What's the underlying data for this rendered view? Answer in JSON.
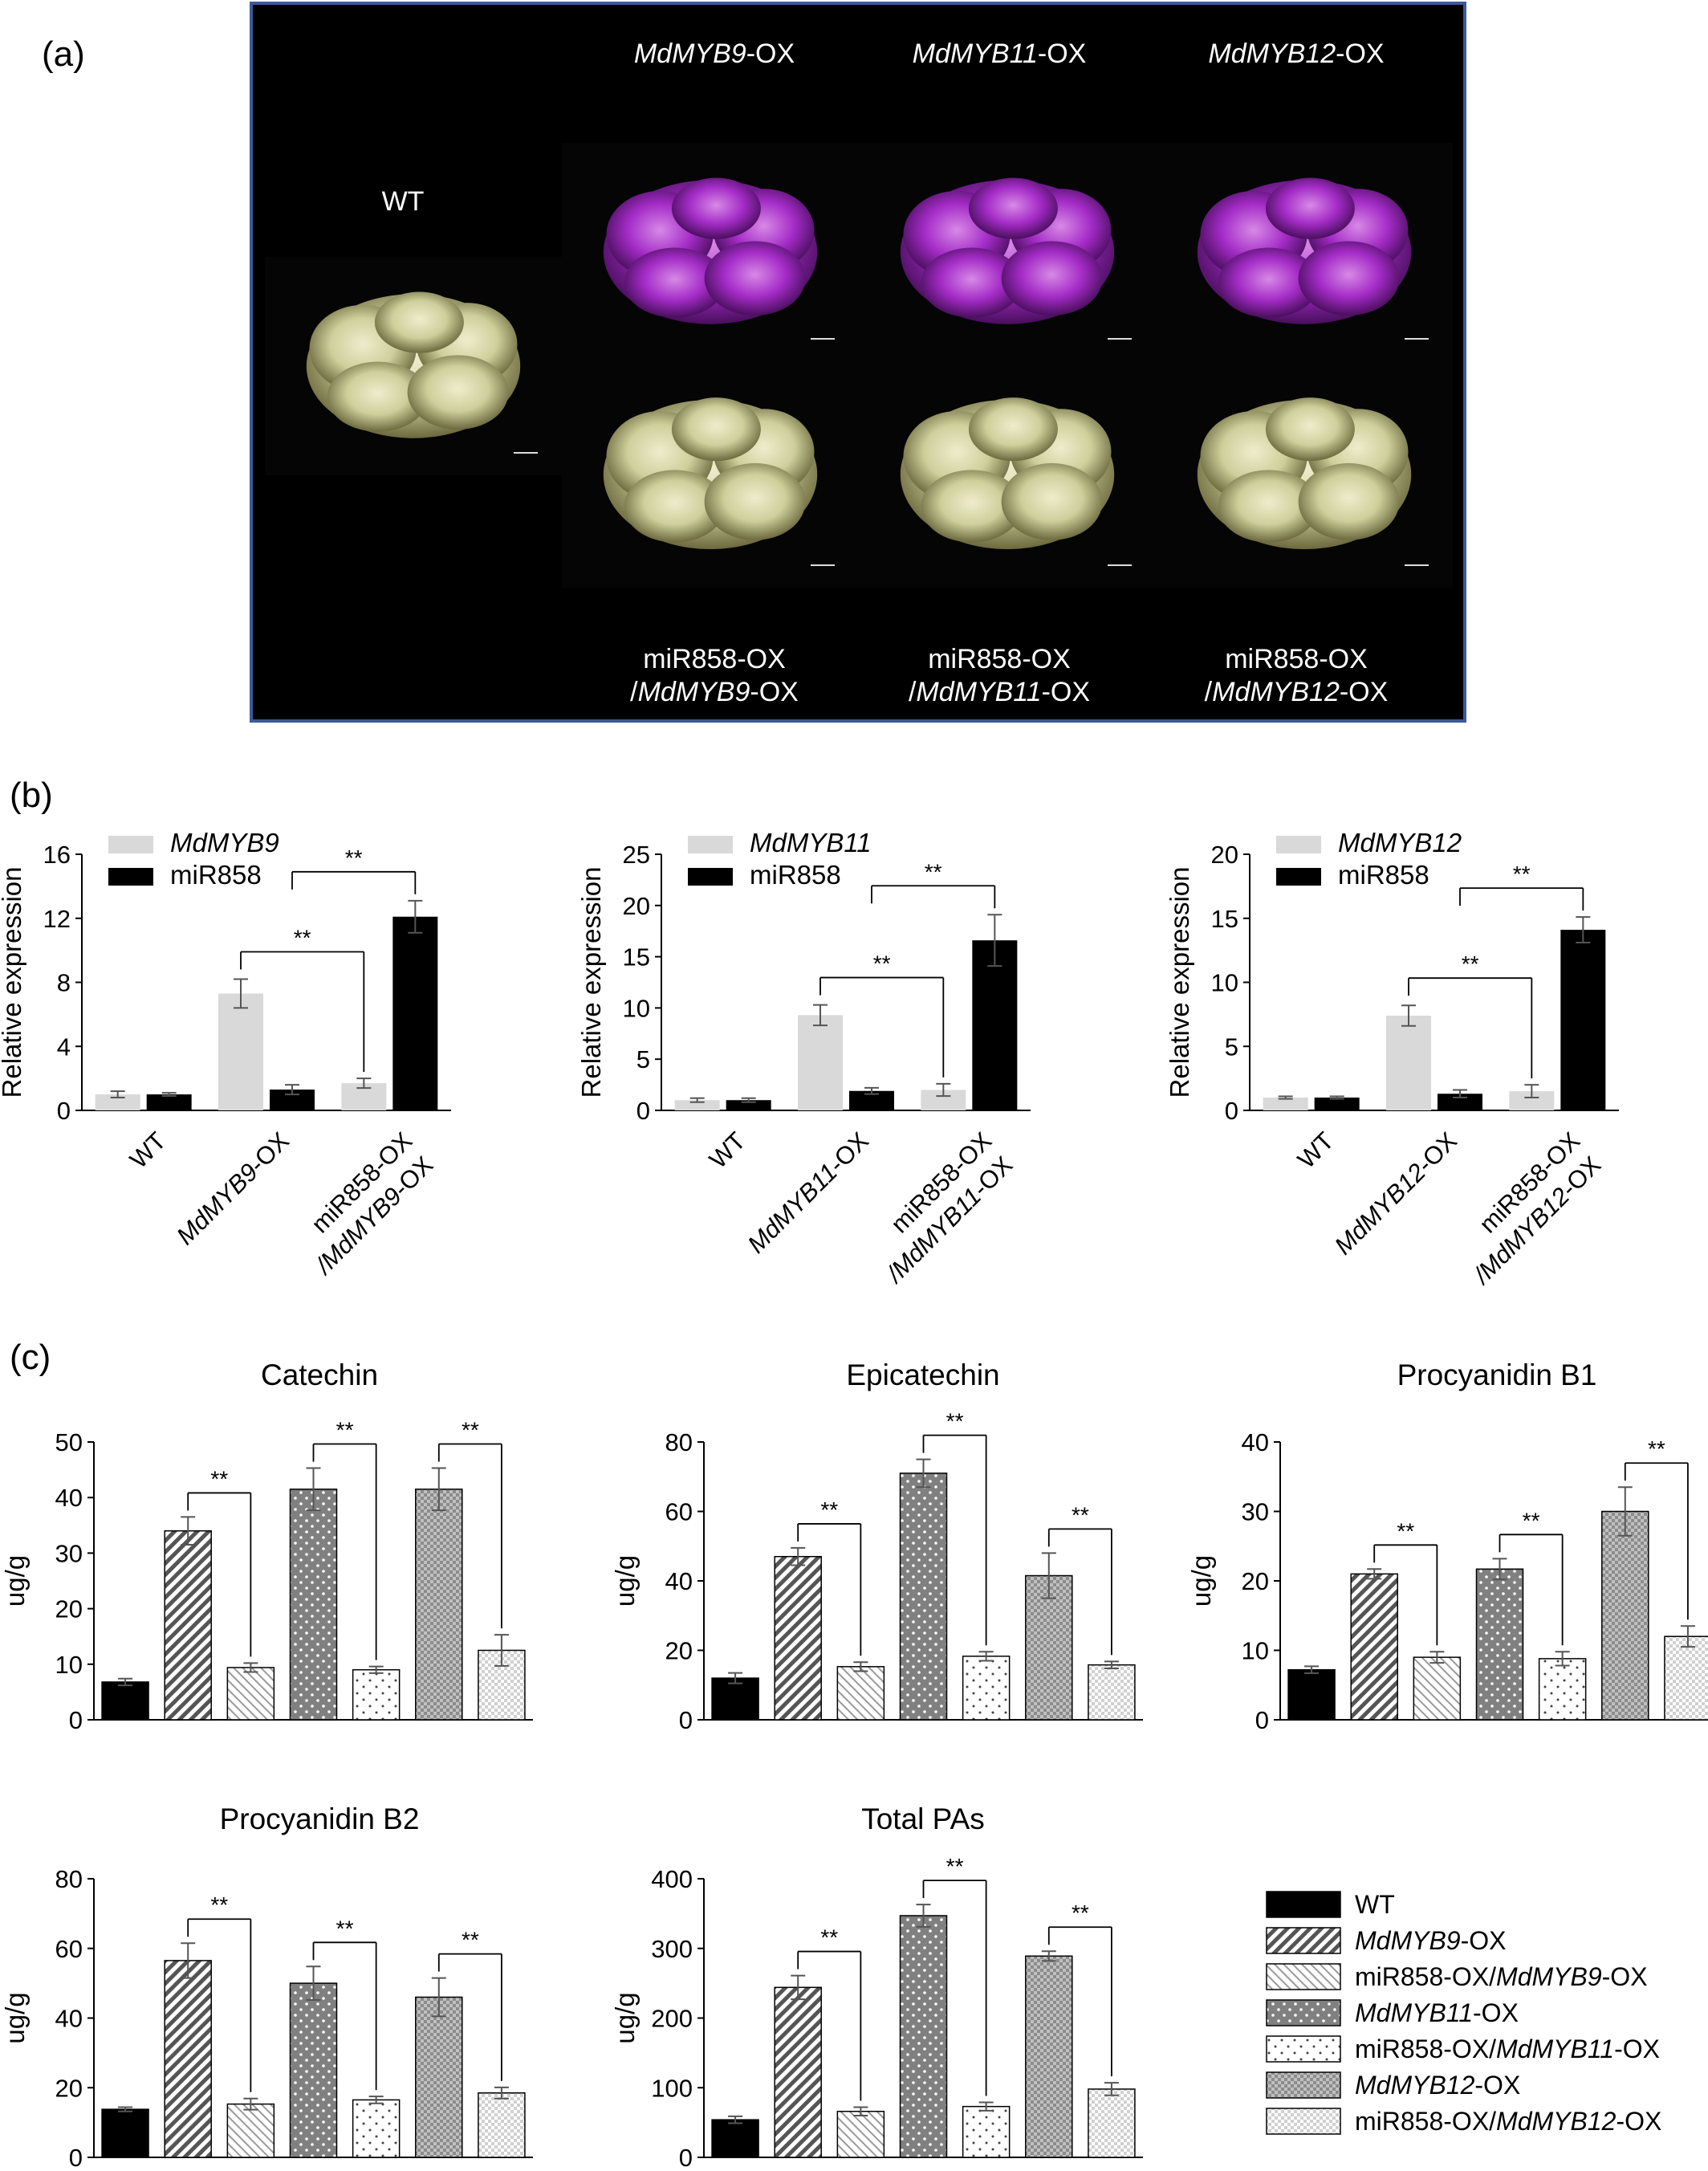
{
  "colors": {
    "photo_border": "#3c5a9a",
    "photo_bg": "#000000",
    "purple": "#a42cc7",
    "cream": "#cfcf9c",
    "bar_light": "#d9d9d9",
    "bar_black": "#000000",
    "bar_dark_pattern": "#7f7f7f",
    "error_bar": "#555555"
  },
  "panel_a": {
    "label": "(a)",
    "wt_label": "WT",
    "top_labels": [
      {
        "gene": "MdMYB9",
        "suffix": "-OX"
      },
      {
        "gene": "MdMYB11",
        "suffix": "-OX"
      },
      {
        "gene": "MdMYB12",
        "suffix": "-OX"
      }
    ],
    "bottom_line1": "miR858-OX",
    "bottom_labels": [
      {
        "prefix": "/",
        "gene": "MdMYB9",
        "suffix": "-OX"
      },
      {
        "prefix": "/",
        "gene": "MdMYB11",
        "suffix": "-OX"
      },
      {
        "prefix": "/",
        "gene": "MdMYB12",
        "suffix": "-OX"
      }
    ],
    "images": [
      {
        "name": "wt-callus",
        "color": "cream"
      },
      {
        "name": "mdmyb9-ox-callus",
        "color": "purple"
      },
      {
        "name": "mdmyb11-ox-callus",
        "color": "purple"
      },
      {
        "name": "mdmyb12-ox-callus",
        "color": "purple"
      },
      {
        "name": "mir858-mdmyb9-callus",
        "color": "cream"
      },
      {
        "name": "mir858-mdmyb11-callus",
        "color": "cream"
      },
      {
        "name": "mir858-mdmyb12-callus",
        "color": "cream"
      }
    ]
  },
  "panel_b": {
    "label": "(b)"
  },
  "panel_c": {
    "label": "(c)",
    "legend": [
      {
        "text": "WT",
        "gene": "",
        "suffix": "",
        "pattern": "black"
      },
      {
        "text": "",
        "gene": "MdMYB9",
        "suffix": "-OX",
        "pattern": "diag"
      },
      {
        "text": "miR858-OX/",
        "gene": "MdMYB9",
        "suffix": "-OX",
        "pattern": "diag-light"
      },
      {
        "text": "",
        "gene": "MdMYB11",
        "suffix": "-OX",
        "pattern": "dots"
      },
      {
        "text": "miR858-OX/",
        "gene": "MdMYB11",
        "suffix": "-OX",
        "pattern": "dots-light"
      },
      {
        "text": "",
        "gene": "MdMYB12",
        "suffix": "-OX",
        "pattern": "checker"
      },
      {
        "text": "miR858-OX/",
        "gene": "MdMYB12",
        "suffix": "-OX",
        "pattern": "checker-light"
      }
    ]
  },
  "chart_data": [
    {
      "type": "bar",
      "panel": "b1",
      "ylabel": "Relative expression",
      "ylim": [
        0,
        16
      ],
      "yticks": [
        "0",
        "4",
        "8",
        "12",
        "16"
      ],
      "categories": [
        {
          "lines": [
            [
              "WT",
              ""
            ]
          ]
        },
        {
          "lines": [
            [
              "MdMYB9",
              "i"
            ],
            [
              "-OX",
              ""
            ]
          ]
        },
        {
          "lines": [
            [
              "miR858-OX",
              ""
            ]
          ],
          "line2": [
            [
              "/MdMYB9",
              "i"
            ],
            [
              "-OX",
              ""
            ]
          ]
        }
      ],
      "series": [
        {
          "name": "MdMYB9",
          "values": [
            1.0,
            7.3,
            1.7
          ],
          "errors": [
            0.2,
            0.9,
            0.3
          ]
        },
        {
          "name": "miR858",
          "values": [
            1.0,
            1.3,
            12.1
          ],
          "errors": [
            0.1,
            0.3,
            1.0
          ]
        }
      ],
      "significance": [
        "**",
        "**"
      ]
    },
    {
      "type": "bar",
      "panel": "b2",
      "ylabel": "Relative expression",
      "ylim": [
        0,
        25
      ],
      "yticks": [
        "0",
        "5",
        "10",
        "15",
        "20",
        "25"
      ],
      "categories": [
        {
          "lines": [
            [
              "WT",
              ""
            ]
          ]
        },
        {
          "lines": [
            [
              "MdMYB11",
              "i"
            ],
            [
              "-OX",
              ""
            ]
          ]
        },
        {
          "lines": [
            [
              "miR858-OX",
              ""
            ]
          ],
          "line2": [
            [
              "/MdMYB11",
              "i"
            ],
            [
              "-OX",
              ""
            ]
          ]
        }
      ],
      "series": [
        {
          "name": "MdMYB11",
          "values": [
            1.0,
            9.3,
            2.0
          ],
          "errors": [
            0.2,
            1.0,
            0.6
          ]
        },
        {
          "name": "miR858",
          "values": [
            1.0,
            1.9,
            16.6
          ],
          "errors": [
            0.2,
            0.3,
            2.5
          ]
        }
      ],
      "significance": [
        "**",
        "**"
      ]
    },
    {
      "type": "bar",
      "panel": "b3",
      "ylabel": "Relative expression",
      "ylim": [
        0,
        20
      ],
      "yticks": [
        "0",
        "5",
        "10",
        "15",
        "20"
      ],
      "categories": [
        {
          "lines": [
            [
              "WT",
              ""
            ]
          ]
        },
        {
          "lines": [
            [
              "MdMYB12",
              "i"
            ],
            [
              "-OX",
              ""
            ]
          ]
        },
        {
          "lines": [
            [
              "miR858-OX",
              ""
            ]
          ],
          "line2": [
            [
              "/MdMYB12",
              "i"
            ],
            [
              "-OX",
              ""
            ]
          ]
        }
      ],
      "series": [
        {
          "name": "MdMYB12",
          "values": [
            1.0,
            7.4,
            1.5
          ],
          "errors": [
            0.1,
            0.8,
            0.5
          ]
        },
        {
          "name": "miR858",
          "values": [
            1.0,
            1.3,
            14.1
          ],
          "errors": [
            0.1,
            0.3,
            1.0
          ]
        }
      ],
      "significance": [
        "**",
        "**"
      ]
    },
    {
      "type": "bar",
      "panel": "c1",
      "title": "Catechin",
      "ylabel": "ug/g",
      "ylim": [
        0,
        50
      ],
      "yticks": [
        "0",
        "10",
        "20",
        "30",
        "40",
        "50"
      ],
      "values": [
        6.8,
        34,
        9.4,
        41.5,
        9.0,
        41.5,
        12.5
      ],
      "errors": [
        0.6,
        2.5,
        0.8,
        3.8,
        0.6,
        3.8,
        2.8
      ],
      "significance": [
        "**",
        "**",
        "**"
      ]
    },
    {
      "type": "bar",
      "panel": "c2",
      "title": "Epicatechin",
      "ylabel": "ug/g",
      "ylim": [
        0,
        80
      ],
      "yticks": [
        "0",
        "20",
        "40",
        "60",
        "80"
      ],
      "values": [
        12,
        47,
        15.3,
        71,
        18.3,
        41.5,
        15.8
      ],
      "errors": [
        1.5,
        2.5,
        1.3,
        4.0,
        1.3,
        6.5,
        1.0
      ],
      "significance": [
        "**",
        "**",
        "**"
      ]
    },
    {
      "type": "bar",
      "panel": "c3",
      "title": "Procyanidin B1",
      "ylabel": "ug/g",
      "ylim": [
        0,
        40
      ],
      "yticks": [
        "0",
        "10",
        "20",
        "30",
        "40"
      ],
      "values": [
        7.2,
        21,
        9.0,
        21.7,
        8.8,
        30,
        12
      ],
      "errors": [
        0.5,
        0.7,
        0.8,
        1.5,
        1.0,
        3.5,
        1.5
      ],
      "significance": [
        "**",
        "**",
        "**"
      ]
    },
    {
      "type": "bar",
      "panel": "c4",
      "title": "Procyanidin B2",
      "ylabel": "ug/g",
      "ylim": [
        0,
        80
      ],
      "yticks": [
        "0",
        "20",
        "40",
        "60",
        "80"
      ],
      "values": [
        13.8,
        56.5,
        15.3,
        50,
        16.5,
        46,
        18.5
      ],
      "errors": [
        0.6,
        5.0,
        1.6,
        4.8,
        1.0,
        5.5,
        1.6
      ],
      "significance": [
        "**",
        "**",
        "**"
      ]
    },
    {
      "type": "bar",
      "panel": "c5",
      "title": "Total PAs",
      "ylabel": "ug/g",
      "ylim": [
        0,
        400
      ],
      "yticks": [
        "0",
        "100",
        "200",
        "300",
        "400"
      ],
      "values": [
        54,
        244,
        66,
        347,
        73,
        289,
        98
      ],
      "errors": [
        5,
        17,
        6,
        16,
        6,
        7,
        9
      ],
      "significance": [
        "**",
        "**",
        "**"
      ]
    }
  ]
}
